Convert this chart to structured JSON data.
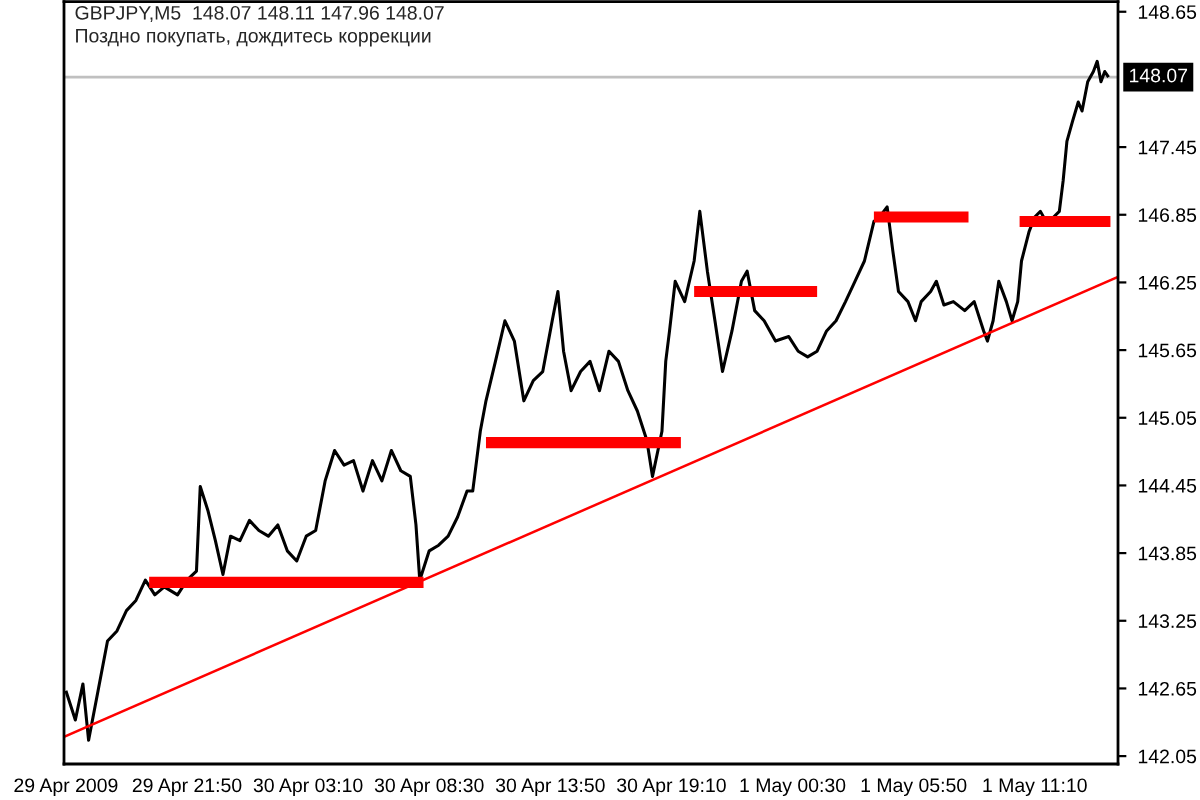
{
  "chart_data": {
    "type": "line",
    "title": "GBPJPY,M5  148.07 148.11 147.96 148.07",
    "subtitle": "Поздно покупать, дождитесь коррекции",
    "xlim": [
      "2009-04-29T16:25",
      "2009-05-01T14:50"
    ],
    "ylim": [
      141.98,
      148.74
    ],
    "xticks": [
      {
        "value": "2009-04-29T16:30",
        "label": "29 Apr 2009"
      },
      {
        "value": "2009-04-29T21:50",
        "label": "29 Apr 21:50"
      },
      {
        "value": "2009-04-30T03:10",
        "label": "30 Apr 03:10"
      },
      {
        "value": "2009-04-30T08:30",
        "label": "30 Apr 08:30"
      },
      {
        "value": "2009-04-30T13:50",
        "label": "30 Apr 13:50"
      },
      {
        "value": "2009-04-30T19:10",
        "label": "30 Apr 19:10"
      },
      {
        "value": "2009-05-01T00:30",
        "label": "1 May 00:30"
      },
      {
        "value": "2009-05-01T05:50",
        "label": "1 May 05:50"
      },
      {
        "value": "2009-05-01T11:10",
        "label": "1 May 11:10"
      }
    ],
    "yticks": [
      142.05,
      142.65,
      143.25,
      143.85,
      144.45,
      145.05,
      145.65,
      146.25,
      146.85,
      147.45,
      148.65
    ],
    "ref_lines": [
      {
        "axis": "y",
        "value": 148.07,
        "label": "148.07",
        "color": "#c0c0c0"
      }
    ],
    "series": [
      {
        "color": "#000000",
        "x": [
          "2009-04-29T16:30",
          "2009-04-29T16:55",
          "2009-04-29T17:15",
          "2009-04-29T17:30",
          "2009-04-29T17:55",
          "2009-04-29T18:20",
          "2009-04-29T18:45",
          "2009-04-29T19:10",
          "2009-04-29T19:35",
          "2009-04-29T20:00",
          "2009-04-29T20:25",
          "2009-04-29T20:50",
          "2009-04-29T21:25",
          "2009-04-29T21:50",
          "2009-04-29T22:15",
          "2009-04-29T22:25",
          "2009-04-29T22:45",
          "2009-04-29T23:05",
          "2009-04-29T23:25",
          "2009-04-29T23:45",
          "2009-04-30T00:10",
          "2009-04-30T00:35",
          "2009-04-30T01:00",
          "2009-04-30T01:25",
          "2009-04-30T01:50",
          "2009-04-30T02:15",
          "2009-04-30T02:40",
          "2009-04-30T03:05",
          "2009-04-30T03:30",
          "2009-04-30T03:55",
          "2009-04-30T04:20",
          "2009-04-30T04:45",
          "2009-04-30T05:10",
          "2009-04-30T05:35",
          "2009-04-30T06:00",
          "2009-04-30T06:25",
          "2009-04-30T06:50",
          "2009-04-30T07:15",
          "2009-04-30T07:40",
          "2009-04-30T07:55",
          "2009-04-30T08:05",
          "2009-04-30T08:30",
          "2009-04-30T08:55",
          "2009-04-30T09:20",
          "2009-04-30T09:45",
          "2009-04-30T10:10",
          "2009-04-30T10:25",
          "2009-04-30T10:45",
          "2009-04-30T11:00",
          "2009-04-30T11:25",
          "2009-04-30T11:50",
          "2009-04-30T12:15",
          "2009-04-30T12:40",
          "2009-04-30T13:05",
          "2009-04-30T13:30",
          "2009-04-30T13:55",
          "2009-04-30T14:10",
          "2009-04-30T14:25",
          "2009-04-30T14:45",
          "2009-04-30T15:10",
          "2009-04-30T15:35",
          "2009-04-30T16:00",
          "2009-04-30T16:25",
          "2009-04-30T16:50",
          "2009-04-30T17:15",
          "2009-04-30T17:40",
          "2009-04-30T18:05",
          "2009-04-30T18:20",
          "2009-04-30T18:45",
          "2009-04-30T18:55",
          "2009-04-30T19:05",
          "2009-04-30T19:20",
          "2009-04-30T19:45",
          "2009-04-30T20:10",
          "2009-04-30T20:25",
          "2009-04-30T20:45",
          "2009-04-30T21:05",
          "2009-04-30T21:25",
          "2009-04-30T21:50",
          "2009-04-30T22:15",
          "2009-04-30T22:30",
          "2009-04-30T22:50",
          "2009-04-30T23:15",
          "2009-04-30T23:45",
          "2009-05-01T00:20",
          "2009-05-01T00:45",
          "2009-05-01T01:10",
          "2009-05-01T01:35",
          "2009-05-01T02:00",
          "2009-05-01T02:25",
          "2009-05-01T02:50",
          "2009-05-01T03:15",
          "2009-05-01T03:40",
          "2009-05-01T04:05",
          "2009-05-01T04:20",
          "2009-05-01T04:40",
          "2009-05-01T04:55",
          "2009-05-01T05:10",
          "2009-05-01T05:35",
          "2009-05-01T05:55",
          "2009-05-01T06:10",
          "2009-05-01T06:35",
          "2009-05-01T06:50",
          "2009-05-01T07:10",
          "2009-05-01T07:35",
          "2009-05-01T08:05",
          "2009-05-01T08:30",
          "2009-05-01T08:55",
          "2009-05-01T09:05",
          "2009-05-01T09:20",
          "2009-05-01T09:35",
          "2009-05-01T09:55",
          "2009-05-01T10:10",
          "2009-05-01T10:25",
          "2009-05-01T10:35",
          "2009-05-01T10:55",
          "2009-05-01T11:10",
          "2009-05-01T11:25",
          "2009-05-01T11:40",
          "2009-05-01T12:00",
          "2009-05-01T12:15",
          "2009-05-01T12:25",
          "2009-05-01T12:35",
          "2009-05-01T12:50",
          "2009-05-01T13:05",
          "2009-05-01T13:15",
          "2009-05-01T13:30",
          "2009-05-01T13:45",
          "2009-05-01T13:55",
          "2009-05-01T14:05",
          "2009-05-01T14:15",
          "2009-05-01T14:25"
        ],
        "values": [
          142.63,
          142.37,
          142.69,
          142.19,
          142.63,
          143.07,
          143.16,
          143.34,
          143.43,
          143.61,
          143.48,
          143.55,
          143.48,
          143.61,
          143.69,
          144.44,
          144.23,
          143.96,
          143.66,
          144.0,
          143.96,
          144.14,
          144.05,
          144.0,
          144.1,
          143.87,
          143.78,
          144.0,
          144.05,
          144.49,
          144.76,
          144.63,
          144.67,
          144.4,
          144.67,
          144.49,
          144.76,
          144.58,
          144.53,
          144.1,
          143.61,
          143.87,
          143.92,
          144.0,
          144.17,
          144.4,
          144.4,
          144.93,
          145.2,
          145.55,
          145.91,
          145.73,
          145.2,
          145.38,
          145.46,
          145.91,
          146.17,
          145.64,
          145.29,
          145.46,
          145.55,
          145.29,
          145.64,
          145.55,
          145.29,
          145.11,
          144.85,
          144.53,
          144.93,
          145.55,
          145.82,
          146.26,
          146.08,
          146.44,
          146.88,
          146.35,
          145.91,
          145.46,
          145.82,
          146.26,
          146.35,
          146.0,
          145.91,
          145.73,
          145.77,
          145.64,
          145.59,
          145.64,
          145.82,
          145.91,
          146.08,
          146.26,
          146.44,
          146.79,
          146.83,
          146.92,
          146.53,
          146.17,
          146.08,
          145.91,
          146.08,
          146.17,
          146.26,
          146.05,
          146.08,
          146.0,
          146.08,
          145.82,
          145.73,
          145.91,
          146.26,
          146.08,
          145.91,
          146.08,
          146.44,
          146.7,
          146.83,
          146.88,
          146.79,
          146.83,
          146.88,
          147.15,
          147.5,
          147.68,
          147.85,
          147.77,
          148.03,
          148.12,
          148.21,
          148.03,
          148.12,
          148.07
        ]
      },
      {
        "color": "#ff0000",
        "x": [
          "2009-04-29T16:25",
          "2009-05-01T14:50"
        ],
        "values": [
          142.22,
          146.3
        ]
      },
      {
        "color": "#ff0000",
        "x": [
          "2009-04-29T20:10",
          "2009-04-30T08:15"
        ],
        "values": [
          143.59,
          143.59
        ]
      },
      {
        "color": "#ff0000",
        "x": [
          "2009-04-30T11:00",
          "2009-04-30T19:35"
        ],
        "values": [
          144.83,
          144.83
        ]
      },
      {
        "color": "#ff0000",
        "x": [
          "2009-04-30T20:10",
          "2009-05-01T01:35"
        ],
        "values": [
          146.17,
          146.17
        ]
      },
      {
        "color": "#ff0000",
        "x": [
          "2009-05-01T04:05",
          "2009-05-01T08:15"
        ],
        "values": [
          146.83,
          146.83
        ]
      },
      {
        "color": "#ff0000",
        "x": [
          "2009-05-01T10:30",
          "2009-05-01T14:30"
        ],
        "values": [
          146.79,
          146.79
        ]
      }
    ]
  }
}
